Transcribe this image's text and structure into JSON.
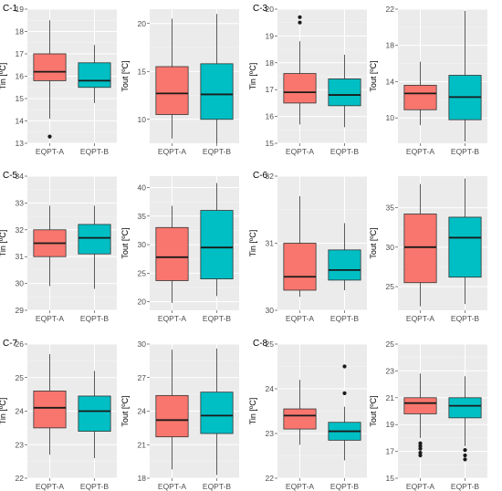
{
  "colors": {
    "EQPT-A": "#f8766d",
    "EQPT-B": "#00bfc4"
  },
  "chart_data": [
    {
      "type": "box",
      "tag": "C-1",
      "ylabel": "Tin [ºC]",
      "ylim": [
        13,
        19
      ],
      "yticks": [
        13,
        14,
        15,
        16,
        17,
        18,
        19
      ],
      "categories": [
        "EQPT-A",
        "EQPT-B"
      ],
      "boxes": [
        {
          "group": "EQPT-A",
          "min": 14.1,
          "q1": 15.8,
          "median": 16.2,
          "q3": 17.0,
          "max": 18.5,
          "outliers": [
            13.3
          ]
        },
        {
          "group": "EQPT-B",
          "min": 14.8,
          "q1": 15.5,
          "median": 15.8,
          "q3": 16.6,
          "max": 17.4,
          "outliers": []
        }
      ]
    },
    {
      "type": "box",
      "tag": "",
      "ylabel": "Tout [ºC]",
      "ylim": [
        7.5,
        21.5
      ],
      "yticks": [
        10,
        15,
        20
      ],
      "categories": [
        "EQPT-A",
        "EQPT-B"
      ],
      "boxes": [
        {
          "group": "EQPT-A",
          "min": 8.0,
          "q1": 10.5,
          "median": 12.7,
          "q3": 15.5,
          "max": 20.5,
          "outliers": []
        },
        {
          "group": "EQPT-B",
          "min": 7.5,
          "q1": 10.0,
          "median": 12.6,
          "q3": 15.8,
          "max": 21.0,
          "outliers": []
        }
      ]
    },
    {
      "type": "box",
      "tag": "C-3",
      "ylabel": "Tin [ºC]",
      "ylim": [
        15,
        20
      ],
      "yticks": [
        15,
        16,
        17,
        18,
        19,
        20
      ],
      "categories": [
        "EQPT-A",
        "EQPT-B"
      ],
      "boxes": [
        {
          "group": "EQPT-A",
          "min": 15.7,
          "q1": 16.5,
          "median": 16.9,
          "q3": 17.6,
          "max": 18.8,
          "outliers": [
            19.5,
            19.7
          ]
        },
        {
          "group": "EQPT-B",
          "min": 15.6,
          "q1": 16.4,
          "median": 16.8,
          "q3": 17.4,
          "max": 18.3,
          "outliers": []
        }
      ]
    },
    {
      "type": "box",
      "tag": "",
      "ylabel": "Tout [ºC]",
      "ylim": [
        7.2,
        22
      ],
      "yticks": [
        10,
        14,
        18,
        22
      ],
      "categories": [
        "EQPT-A",
        "EQPT-B"
      ],
      "boxes": [
        {
          "group": "EQPT-A",
          "min": 9.2,
          "q1": 10.9,
          "median": 12.7,
          "q3": 13.6,
          "max": 16.2,
          "outliers": []
        },
        {
          "group": "EQPT-B",
          "min": 7.4,
          "q1": 9.8,
          "median": 12.3,
          "q3": 14.7,
          "max": 21.8,
          "outliers": []
        }
      ]
    },
    {
      "type": "box",
      "tag": "C-5",
      "ylabel": "Tin [ºC]",
      "ylim": [
        29,
        34
      ],
      "yticks": [
        29,
        30,
        31,
        32,
        33,
        34
      ],
      "categories": [
        "EQPT-A",
        "EQPT-B"
      ],
      "boxes": [
        {
          "group": "EQPT-A",
          "min": 29.9,
          "q1": 31.0,
          "median": 31.5,
          "q3": 32.0,
          "max": 32.9,
          "outliers": []
        },
        {
          "group": "EQPT-B",
          "min": 29.8,
          "q1": 31.1,
          "median": 31.7,
          "q3": 32.2,
          "max": 32.9,
          "outliers": []
        }
      ]
    },
    {
      "type": "box",
      "tag": "",
      "ylabel": "Tout [ºC]",
      "ylim": [
        18.5,
        42
      ],
      "yticks": [
        20,
        25,
        30,
        35,
        40
      ],
      "categories": [
        "EQPT-A",
        "EQPT-B"
      ],
      "boxes": [
        {
          "group": "EQPT-A",
          "min": 19.8,
          "q1": 23.7,
          "median": 27.8,
          "q3": 33.0,
          "max": 36.8,
          "outliers": []
        },
        {
          "group": "EQPT-B",
          "min": 21.0,
          "q1": 24.0,
          "median": 29.5,
          "q3": 36.0,
          "max": 40.8,
          "outliers": []
        }
      ]
    },
    {
      "type": "box",
      "tag": "C-6",
      "ylabel": "Tin [ºC]",
      "ylim": [
        30,
        32
      ],
      "yticks": [
        30,
        31,
        32
      ],
      "categories": [
        "EQPT-A",
        "EQPT-B"
      ],
      "boxes": [
        {
          "group": "EQPT-A",
          "min": 30.2,
          "q1": 30.3,
          "median": 30.5,
          "q3": 31.0,
          "max": 31.7,
          "outliers": []
        },
        {
          "group": "EQPT-B",
          "min": 30.3,
          "q1": 30.45,
          "median": 30.6,
          "q3": 30.9,
          "max": 31.3,
          "outliers": []
        }
      ]
    },
    {
      "type": "box",
      "tag": "",
      "ylabel": "Tout [ºC]",
      "ylim": [
        22,
        39
      ],
      "yticks": [
        25,
        30,
        35
      ],
      "categories": [
        "EQPT-A",
        "EQPT-B"
      ],
      "boxes": [
        {
          "group": "EQPT-A",
          "min": 22.5,
          "q1": 25.5,
          "median": 30.0,
          "q3": 34.2,
          "max": 38.0,
          "outliers": []
        },
        {
          "group": "EQPT-B",
          "min": 22.8,
          "q1": 26.2,
          "median": 31.2,
          "q3": 33.8,
          "max": 38.7,
          "outliers": []
        }
      ]
    },
    {
      "type": "box",
      "tag": "C-7",
      "ylabel": "Tin [ºC]",
      "ylim": [
        22,
        26
      ],
      "yticks": [
        22,
        23,
        24,
        25,
        26
      ],
      "categories": [
        "EQPT-A",
        "EQPT-B"
      ],
      "boxes": [
        {
          "group": "EQPT-A",
          "min": 22.7,
          "q1": 23.5,
          "median": 24.1,
          "q3": 24.6,
          "max": 25.7,
          "outliers": []
        },
        {
          "group": "EQPT-B",
          "min": 22.6,
          "q1": 23.4,
          "median": 24.0,
          "q3": 24.45,
          "max": 25.2,
          "outliers": []
        }
      ]
    },
    {
      "type": "box",
      "tag": "",
      "ylabel": "Tout [ºC]",
      "ylim": [
        18,
        30
      ],
      "yticks": [
        18,
        21,
        24,
        27,
        30
      ],
      "categories": [
        "EQPT-A",
        "EQPT-B"
      ],
      "boxes": [
        {
          "group": "EQPT-A",
          "min": 18.8,
          "q1": 21.7,
          "median": 23.2,
          "q3": 25.4,
          "max": 29.5,
          "outliers": []
        },
        {
          "group": "EQPT-B",
          "min": 18.3,
          "q1": 22.0,
          "median": 23.6,
          "q3": 25.7,
          "max": 29.6,
          "outliers": []
        }
      ]
    },
    {
      "type": "box",
      "tag": "C-8",
      "ylabel": "Tin [ºC]",
      "ylim": [
        22,
        25
      ],
      "yticks": [
        22,
        23,
        24,
        25
      ],
      "categories": [
        "EQPT-A",
        "EQPT-B"
      ],
      "boxes": [
        {
          "group": "EQPT-A",
          "min": 22.75,
          "q1": 23.1,
          "median": 23.4,
          "q3": 23.55,
          "max": 24.2,
          "outliers": []
        },
        {
          "group": "EQPT-B",
          "min": 22.4,
          "q1": 22.85,
          "median": 23.05,
          "q3": 23.25,
          "max": 23.6,
          "outliers": [
            23.9,
            24.5
          ]
        }
      ]
    },
    {
      "type": "box",
      "tag": "",
      "ylabel": "Tout [ºC]",
      "ylim": [
        15,
        25
      ],
      "yticks": [
        15,
        17,
        19,
        21,
        23,
        25
      ],
      "categories": [
        "EQPT-A",
        "EQPT-B"
      ],
      "boxes": [
        {
          "group": "EQPT-A",
          "min": 18.0,
          "q1": 19.8,
          "median": 20.6,
          "q3": 21.0,
          "max": 22.8,
          "outliers": [
            17.6,
            17.4,
            17.2,
            16.9,
            16.7
          ]
        },
        {
          "group": "EQPT-B",
          "min": 17.4,
          "q1": 19.5,
          "median": 20.4,
          "q3": 21.0,
          "max": 22.6,
          "outliers": [
            17.1,
            16.7,
            16.4
          ]
        }
      ]
    }
  ]
}
